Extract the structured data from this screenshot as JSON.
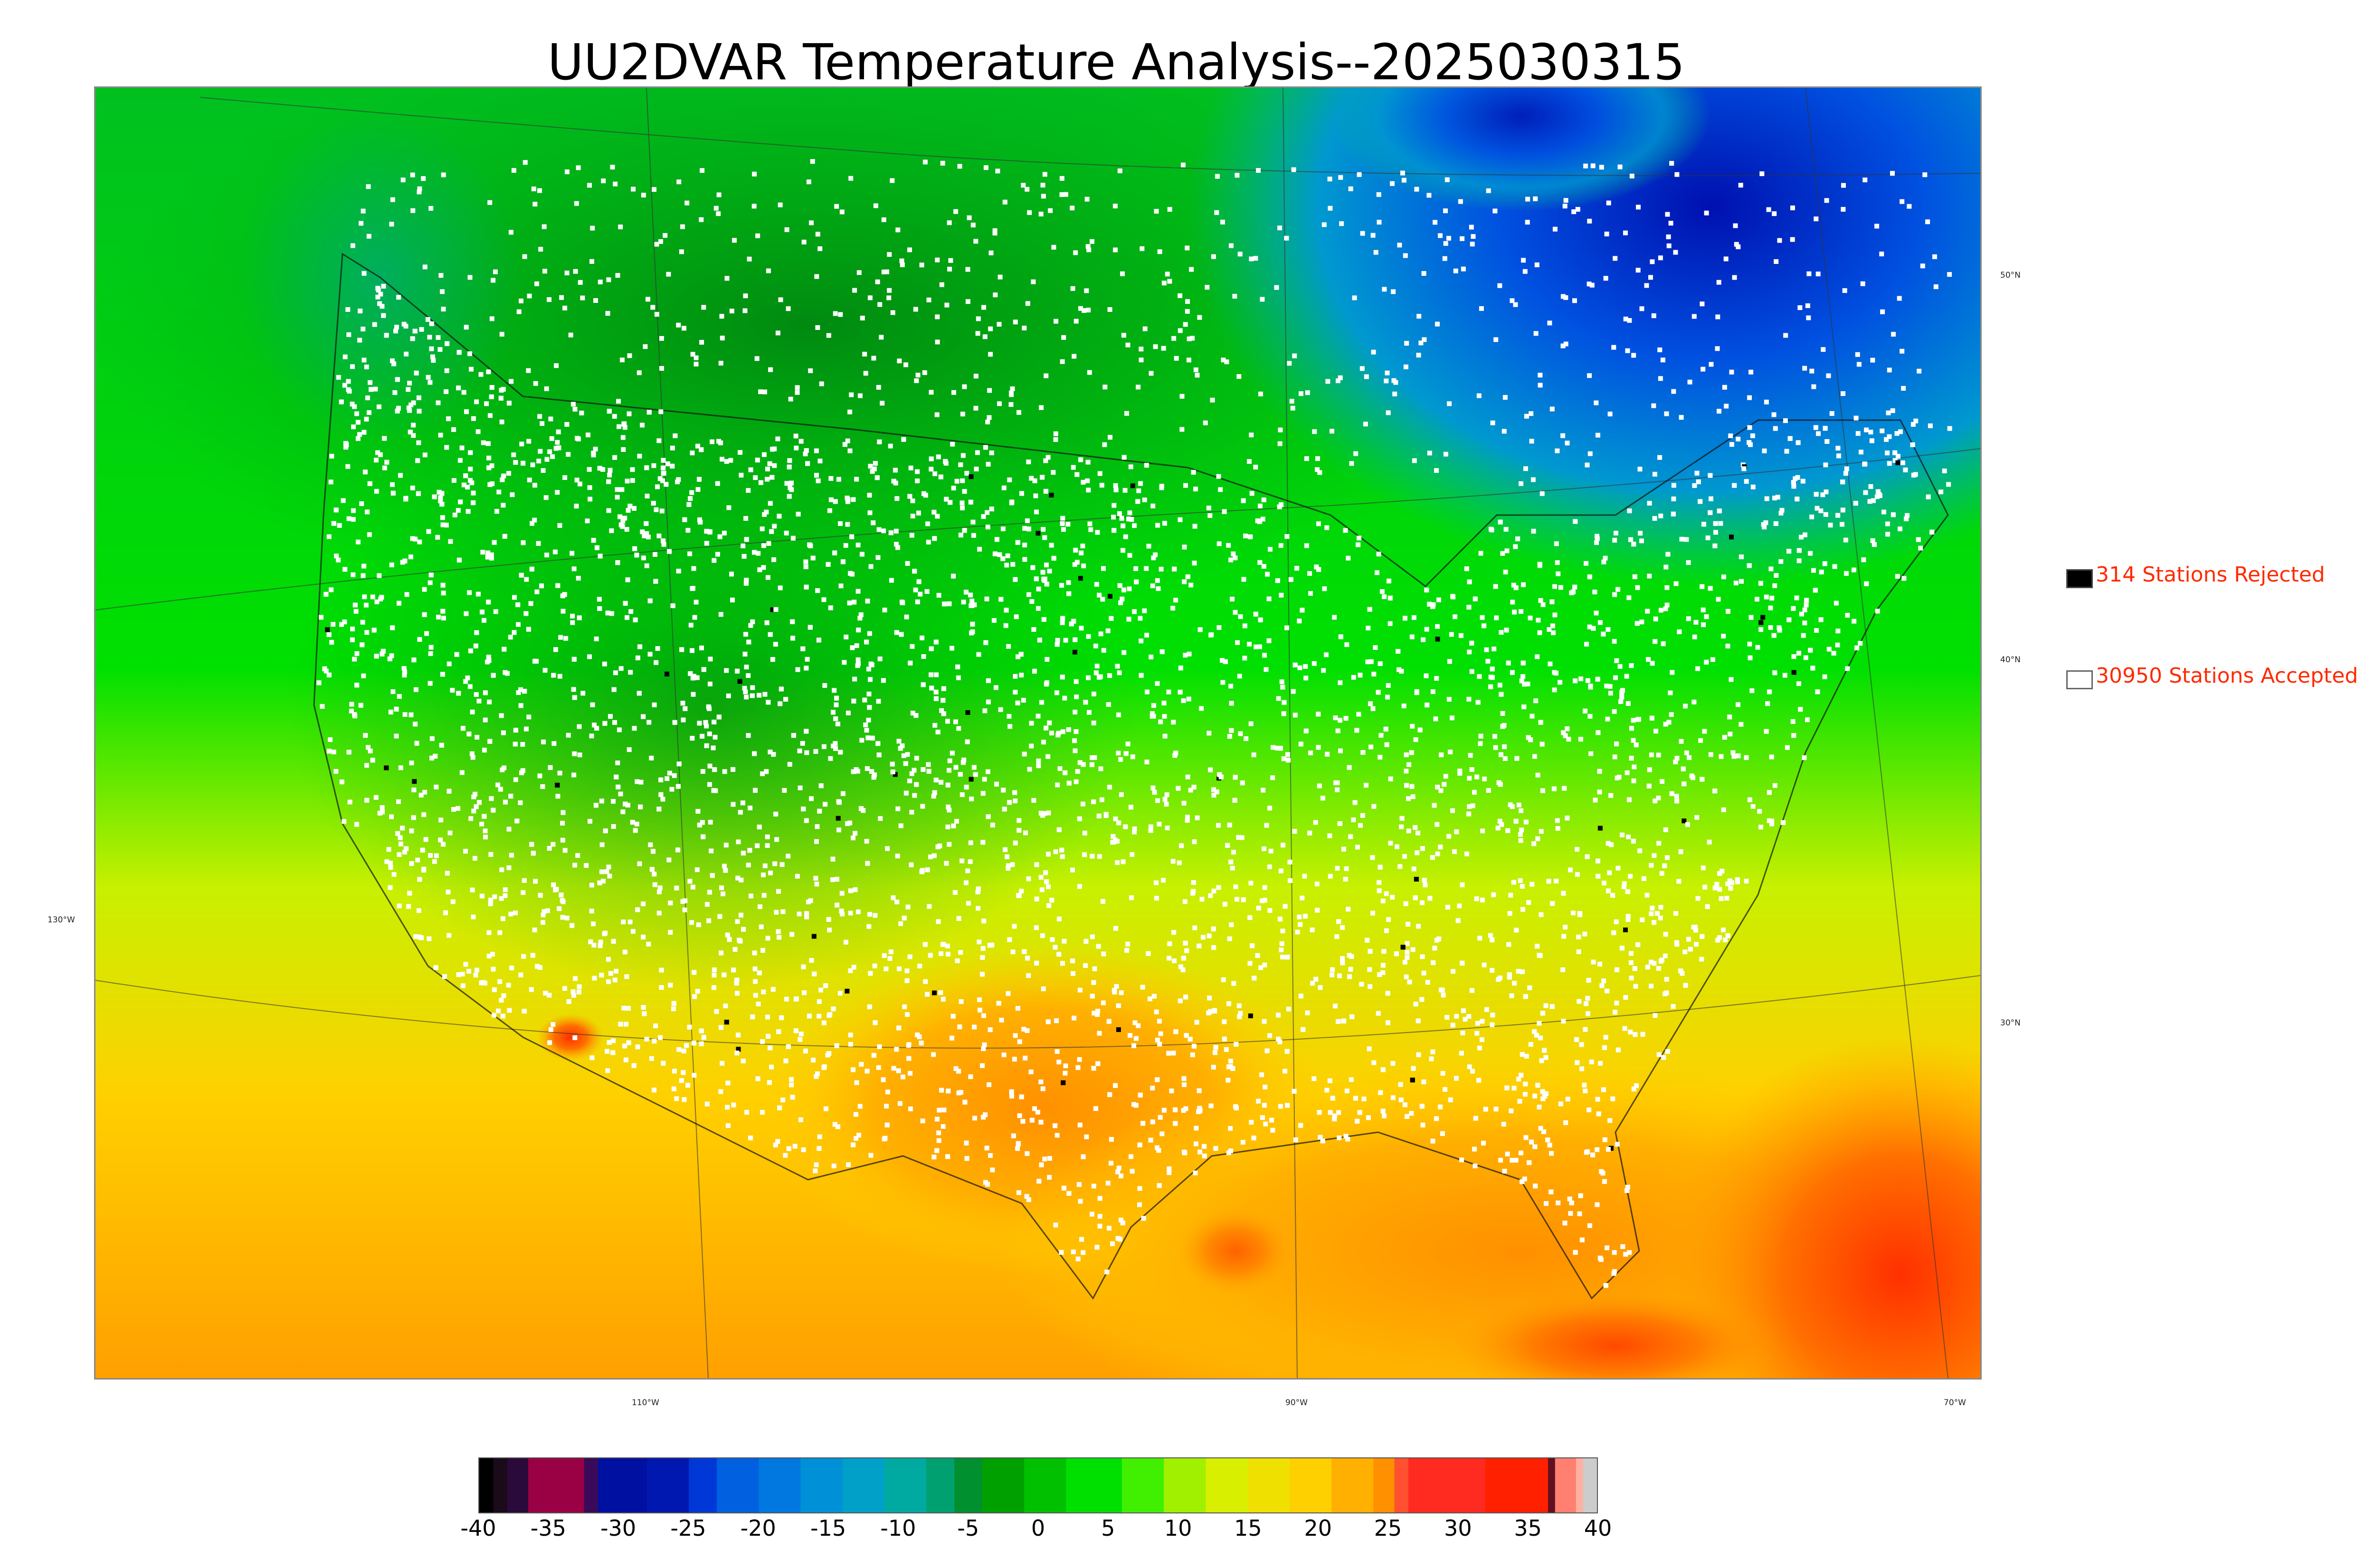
{
  "title": "UU2DVAR Temperature Analysis--2025030315",
  "legend": {
    "rejected": {
      "label": "314 Stations Rejected",
      "swatch_color": "#000000"
    },
    "accepted": {
      "label": "30950 Stations Accepted",
      "swatch_color": "#ffffff"
    }
  },
  "axes": {
    "longitude_labels": [
      "130°W",
      "110°W",
      "90°W",
      "70°W"
    ],
    "latitude_labels": [
      "50°N",
      "40°N",
      "30°N"
    ]
  },
  "colorbar": {
    "ticks": [
      "-40",
      "-35",
      "-30",
      "-25",
      "-20",
      "-15",
      "-10",
      "-5",
      "0",
      "5",
      "10",
      "15",
      "20",
      "25",
      "30",
      "35",
      "40"
    ],
    "range": [
      -40,
      40
    ],
    "bands": [
      {
        "from": -40,
        "to": -39,
        "color": "#000000"
      },
      {
        "from": -39,
        "to": -38,
        "color": "#1a0a1a"
      },
      {
        "from": -38,
        "to": -36.5,
        "color": "#2a0a3a"
      },
      {
        "from": -36.5,
        "to": -32.5,
        "color": "#9a0044"
      },
      {
        "from": -32.5,
        "to": -31.5,
        "color": "#3a0a5a"
      },
      {
        "from": -31.5,
        "to": -28,
        "color": "#0010a0"
      },
      {
        "from": -28,
        "to": -25,
        "color": "#0018b0"
      },
      {
        "from": -25,
        "to": -23,
        "color": "#0038d8"
      },
      {
        "from": -23,
        "to": -20,
        "color": "#0060e0"
      },
      {
        "from": -20,
        "to": -17,
        "color": "#0078e0"
      },
      {
        "from": -17,
        "to": -14,
        "color": "#0090d8"
      },
      {
        "from": -14,
        "to": -11,
        "color": "#00a0c8"
      },
      {
        "from": -11,
        "to": -8,
        "color": "#00aaa0"
      },
      {
        "from": -8,
        "to": -6,
        "color": "#00a070"
      },
      {
        "from": -6,
        "to": -4,
        "color": "#009030"
      },
      {
        "from": -4,
        "to": -1,
        "color": "#00a000"
      },
      {
        "from": -1,
        "to": 2,
        "color": "#00c000"
      },
      {
        "from": 2,
        "to": 6,
        "color": "#00e000"
      },
      {
        "from": 6,
        "to": 9,
        "color": "#40f000"
      },
      {
        "from": 9,
        "to": 12,
        "color": "#a0f000"
      },
      {
        "from": 12,
        "to": 15,
        "color": "#d8f000"
      },
      {
        "from": 15,
        "to": 18,
        "color": "#f0e000"
      },
      {
        "from": 18,
        "to": 21,
        "color": "#ffd000"
      },
      {
        "from": 21,
        "to": 24,
        "color": "#ffb000"
      },
      {
        "from": 24,
        "to": 25.5,
        "color": "#ff9000"
      },
      {
        "from": 25.5,
        "to": 26.5,
        "color": "#ff5030"
      },
      {
        "from": 26.5,
        "to": 32,
        "color": "#ff2a20"
      },
      {
        "from": 32,
        "to": 36.5,
        "color": "#ff2000"
      },
      {
        "from": 36.5,
        "to": 37,
        "color": "#601020"
      },
      {
        "from": 37,
        "to": 38.5,
        "color": "#ff8070"
      },
      {
        "from": 38.5,
        "to": 39,
        "color": "#ffb0a0"
      },
      {
        "from": 39,
        "to": 40,
        "color": "#cccccc"
      }
    ]
  },
  "colors": {
    "cold_dark_blue": "#0018c0",
    "cold_blue": "#0090e0",
    "cool_teal": "#00b0a0",
    "cool_green": "#009a10",
    "mild_green": "#00e000",
    "warm_yellow": "#e8f000",
    "hot_orange": "#ffa000",
    "hot_red": "#ff3000",
    "station_accepted": "#ffffff",
    "station_rejected": "#000000",
    "outline": "#000000"
  }
}
